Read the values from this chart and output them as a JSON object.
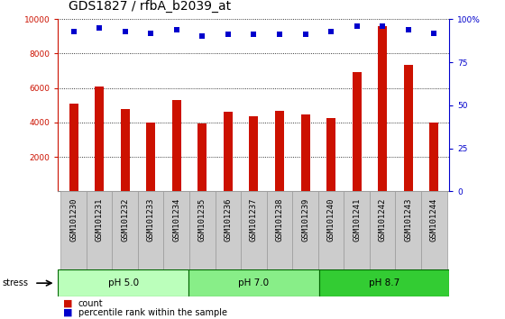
{
  "title": "GDS1827 / rfbA_b2039_at",
  "samples": [
    "GSM101230",
    "GSM101231",
    "GSM101232",
    "GSM101233",
    "GSM101234",
    "GSM101235",
    "GSM101236",
    "GSM101237",
    "GSM101238",
    "GSM101239",
    "GSM101240",
    "GSM101241",
    "GSM101242",
    "GSM101243",
    "GSM101244"
  ],
  "counts": [
    5100,
    6100,
    4800,
    4000,
    5300,
    3950,
    4600,
    4350,
    4700,
    4450,
    4250,
    6900,
    9600,
    7350,
    4000
  ],
  "percentile_ranks": [
    93,
    95,
    93,
    92,
    94,
    90,
    91,
    91,
    91,
    91,
    93,
    96,
    96,
    94,
    92
  ],
  "groups": [
    {
      "label": "pH 5.0",
      "start": 0,
      "end": 5,
      "color": "#bbffbb"
    },
    {
      "label": "pH 7.0",
      "start": 5,
      "end": 10,
      "color": "#88ee88"
    },
    {
      "label": "pH 8.7",
      "start": 10,
      "end": 15,
      "color": "#33cc33"
    }
  ],
  "stress_label": "stress",
  "bar_color": "#cc1100",
  "dot_color": "#0000cc",
  "ylim_left": [
    0,
    10000
  ],
  "ylim_right": [
    0,
    100
  ],
  "yticks_left": [
    2000,
    4000,
    6000,
    8000,
    10000
  ],
  "yticks_right": [
    0,
    25,
    50,
    75,
    100
  ],
  "ytick_right_labels": [
    "0",
    "25",
    "50",
    "75",
    "100%"
  ],
  "background_color": "#ffffff",
  "tick_area_color": "#cccccc",
  "grid_color": "#000000",
  "title_fontsize": 10,
  "tick_fontsize": 6.5,
  "label_fontsize": 8
}
